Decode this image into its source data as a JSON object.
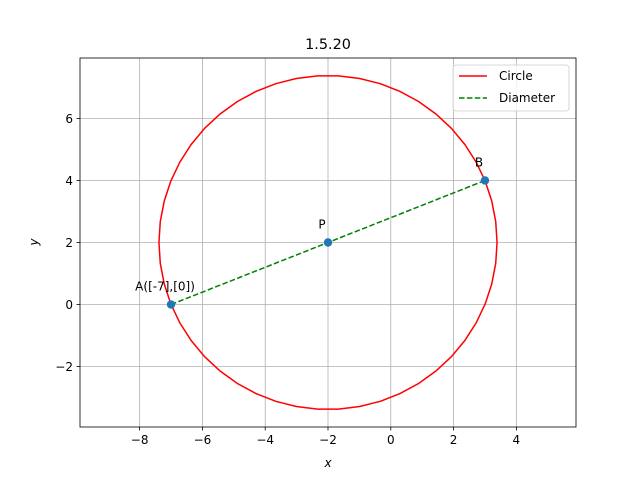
{
  "chart_data": {
    "type": "line",
    "title": "1.5.20",
    "xlabel": "x",
    "ylabel": "y",
    "xlim": [
      -9.9,
      5.9
    ],
    "ylim": [
      -3.95,
      7.95
    ],
    "xticks": [
      -8,
      -6,
      -4,
      -2,
      0,
      2,
      4
    ],
    "yticks": [
      -2,
      0,
      2,
      4,
      6
    ],
    "grid": true,
    "legend_position": "top-right",
    "series": [
      {
        "name": "Circle",
        "type": "circle",
        "center": [
          -2,
          2
        ],
        "radius": 5.385,
        "color": "#ff0000",
        "style": "solid"
      },
      {
        "name": "Diameter",
        "type": "line",
        "x": [
          -7,
          3
        ],
        "y": [
          0,
          4
        ],
        "color": "#008000",
        "style": "dashed"
      }
    ],
    "points": [
      {
        "label": "A([-7],[0])",
        "x": -7,
        "y": 0
      },
      {
        "label": "B",
        "x": 3,
        "y": 4
      },
      {
        "label": "P",
        "x": -2,
        "y": 2
      }
    ],
    "point_color": "#1f77b4"
  }
}
